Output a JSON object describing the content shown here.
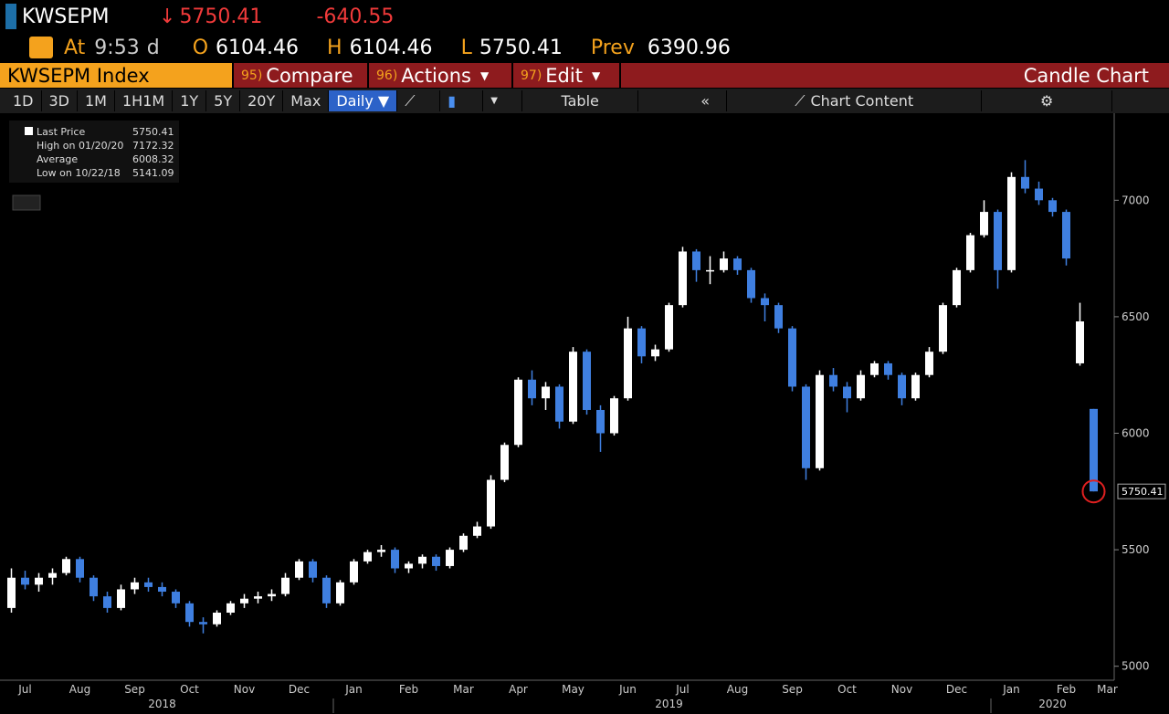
{
  "header": {
    "ticker": "KWSEPM",
    "price": "5750.41",
    "change": "-640.55",
    "at": "At",
    "time": "9:53",
    "flag": "d",
    "o_label": "O",
    "open": "6104.46",
    "h_label": "H",
    "high": "6104.46",
    "l_label": "L",
    "low": "5750.41",
    "prev_label": "Prev",
    "prev": "6390.96"
  },
  "toolbar": {
    "security": "KWSEPM Index",
    "items": [
      {
        "num": "95)",
        "label": "Compare"
      },
      {
        "num": "96)",
        "label": "Actions"
      },
      {
        "num": "97)",
        "label": "Edit"
      }
    ],
    "chart_name": "Candle Chart"
  },
  "range_bar": {
    "ranges": [
      "1D",
      "3D",
      "1M",
      "1H1M",
      "1Y",
      "5Y",
      "20Y",
      "Max"
    ],
    "frequency": "Daily ▼",
    "table": "Table",
    "chart_content": "Chart Content"
  },
  "chart_data": {
    "type": "candlestick",
    "up_color": "#ffffff",
    "down_color": "#3f7fe0",
    "legend": [
      {
        "label": "Last Price",
        "value": "5750.41"
      },
      {
        "label": "High on 01/20/20",
        "value": "7172.32"
      },
      {
        "label": "Average",
        "value": "6008.32"
      },
      {
        "label": "Low on 10/22/18",
        "value": "5141.09"
      }
    ],
    "last_price_label": "5750.41",
    "ylim": [
      4940,
      7350
    ],
    "yticks": [
      5000,
      5500,
      6000,
      6500,
      7000
    ],
    "grid": false,
    "categories": [
      null,
      "Jul",
      null,
      null,
      null,
      "Aug",
      null,
      null,
      null,
      "Sep",
      null,
      null,
      null,
      "Oct",
      null,
      null,
      null,
      "Nov",
      null,
      null,
      null,
      "Dec",
      null,
      null,
      null,
      "Jan",
      null,
      null,
      null,
      "Feb",
      null,
      null,
      null,
      "Mar",
      null,
      null,
      null,
      "Apr",
      null,
      null,
      null,
      "May",
      null,
      null,
      null,
      "Jun",
      null,
      null,
      null,
      "Jul",
      null,
      null,
      null,
      "Aug",
      null,
      null,
      null,
      "Sep",
      null,
      null,
      null,
      "Oct",
      null,
      null,
      null,
      "Nov",
      null,
      null,
      null,
      "Dec",
      null,
      null,
      null,
      "Jan",
      null,
      null,
      null,
      "Feb",
      null,
      null,
      "Mar"
    ],
    "year_categories": [
      null,
      null,
      null,
      null,
      null,
      null,
      null,
      null,
      null,
      null,
      null,
      "2018",
      null,
      null,
      null,
      null,
      null,
      null,
      null,
      null,
      null,
      null,
      null,
      null,
      null,
      null,
      null,
      null,
      null,
      null,
      null,
      null,
      null,
      null,
      null,
      null,
      null,
      null,
      null,
      null,
      null,
      null,
      null,
      null,
      null,
      null,
      null,
      null,
      "2019",
      null,
      null,
      null,
      null,
      null,
      null,
      null,
      null,
      null,
      null,
      null,
      null,
      null,
      null,
      null,
      null,
      null,
      null,
      null,
      null,
      null,
      null,
      null,
      null,
      null,
      null,
      null,
      "2020",
      null,
      null,
      null,
      null
    ],
    "candles": [
      {
        "open": 5250,
        "high": 5420,
        "low": 5230,
        "close": 5380
      },
      {
        "open": 5380,
        "high": 5410,
        "low": 5330,
        "close": 5350
      },
      {
        "open": 5350,
        "high": 5400,
        "low": 5320,
        "close": 5380
      },
      {
        "open": 5380,
        "high": 5420,
        "low": 5350,
        "close": 5400
      },
      {
        "open": 5400,
        "high": 5470,
        "low": 5390,
        "close": 5460
      },
      {
        "open": 5460,
        "high": 5470,
        "low": 5360,
        "close": 5380
      },
      {
        "open": 5380,
        "high": 5390,
        "low": 5280,
        "close": 5300
      },
      {
        "open": 5300,
        "high": 5320,
        "low": 5230,
        "close": 5250
      },
      {
        "open": 5250,
        "high": 5350,
        "low": 5240,
        "close": 5330
      },
      {
        "open": 5330,
        "high": 5380,
        "low": 5310,
        "close": 5360
      },
      {
        "open": 5360,
        "high": 5380,
        "low": 5320,
        "close": 5340
      },
      {
        "open": 5340,
        "high": 5360,
        "low": 5300,
        "close": 5320
      },
      {
        "open": 5320,
        "high": 5330,
        "low": 5250,
        "close": 5270
      },
      {
        "open": 5270,
        "high": 5280,
        "low": 5170,
        "close": 5190
      },
      {
        "open": 5190,
        "high": 5210,
        "low": 5141.09,
        "close": 5180
      },
      {
        "open": 5180,
        "high": 5240,
        "low": 5170,
        "close": 5230
      },
      {
        "open": 5230,
        "high": 5280,
        "low": 5220,
        "close": 5270
      },
      {
        "open": 5270,
        "high": 5310,
        "low": 5250,
        "close": 5290
      },
      {
        "open": 5290,
        "high": 5320,
        "low": 5270,
        "close": 5300
      },
      {
        "open": 5300,
        "high": 5330,
        "low": 5280,
        "close": 5310
      },
      {
        "open": 5310,
        "high": 5400,
        "low": 5300,
        "close": 5380
      },
      {
        "open": 5380,
        "high": 5460,
        "low": 5370,
        "close": 5450
      },
      {
        "open": 5450,
        "high": 5460,
        "low": 5360,
        "close": 5380
      },
      {
        "open": 5380,
        "high": 5390,
        "low": 5250,
        "close": 5270
      },
      {
        "open": 5270,
        "high": 5370,
        "low": 5260,
        "close": 5360
      },
      {
        "open": 5360,
        "high": 5460,
        "low": 5350,
        "close": 5450
      },
      {
        "open": 5450,
        "high": 5500,
        "low": 5440,
        "close": 5490
      },
      {
        "open": 5490,
        "high": 5520,
        "low": 5470,
        "close": 5500
      },
      {
        "open": 5500,
        "high": 5510,
        "low": 5400,
        "close": 5420
      },
      {
        "open": 5420,
        "high": 5450,
        "low": 5400,
        "close": 5440
      },
      {
        "open": 5440,
        "high": 5480,
        "low": 5420,
        "close": 5470
      },
      {
        "open": 5470,
        "high": 5480,
        "low": 5410,
        "close": 5430
      },
      {
        "open": 5430,
        "high": 5510,
        "low": 5420,
        "close": 5500
      },
      {
        "open": 5500,
        "high": 5570,
        "low": 5490,
        "close": 5560
      },
      {
        "open": 5560,
        "high": 5620,
        "low": 5550,
        "close": 5600
      },
      {
        "open": 5600,
        "high": 5820,
        "low": 5590,
        "close": 5800
      },
      {
        "open": 5800,
        "high": 5960,
        "low": 5790,
        "close": 5950
      },
      {
        "open": 5950,
        "high": 6240,
        "low": 5940,
        "close": 6230
      },
      {
        "open": 6230,
        "high": 6270,
        "low": 6120,
        "close": 6150
      },
      {
        "open": 6150,
        "high": 6220,
        "low": 6100,
        "close": 6200
      },
      {
        "open": 6200,
        "high": 6210,
        "low": 6020,
        "close": 6050
      },
      {
        "open": 6050,
        "high": 6370,
        "low": 6040,
        "close": 6350
      },
      {
        "open": 6350,
        "high": 6360,
        "low": 6080,
        "close": 6100
      },
      {
        "open": 6100,
        "high": 6120,
        "low": 5920,
        "close": 6000
      },
      {
        "open": 6000,
        "high": 6160,
        "low": 5990,
        "close": 6150
      },
      {
        "open": 6150,
        "high": 6500,
        "low": 6140,
        "close": 6450
      },
      {
        "open": 6450,
        "high": 6460,
        "low": 6300,
        "close": 6330
      },
      {
        "open": 6330,
        "high": 6380,
        "low": 6310,
        "close": 6360
      },
      {
        "open": 6360,
        "high": 6560,
        "low": 6350,
        "close": 6550
      },
      {
        "open": 6550,
        "high": 6800,
        "low": 6540,
        "close": 6780
      },
      {
        "open": 6780,
        "high": 6790,
        "low": 6650,
        "close": 6700
      },
      {
        "open": 6700,
        "high": 6760,
        "low": 6640,
        "close": 6700
      },
      {
        "open": 6700,
        "high": 6780,
        "low": 6690,
        "close": 6750
      },
      {
        "open": 6750,
        "high": 6760,
        "low": 6680,
        "close": 6700
      },
      {
        "open": 6700,
        "high": 6710,
        "low": 6560,
        "close": 6580
      },
      {
        "open": 6580,
        "high": 6600,
        "low": 6480,
        "close": 6550
      },
      {
        "open": 6550,
        "high": 6560,
        "low": 6430,
        "close": 6450
      },
      {
        "open": 6450,
        "high": 6460,
        "low": 6180,
        "close": 6200
      },
      {
        "open": 6200,
        "high": 6210,
        "low": 5800,
        "close": 5850
      },
      {
        "open": 5850,
        "high": 6270,
        "low": 5840,
        "close": 6250
      },
      {
        "open": 6250,
        "high": 6280,
        "low": 6180,
        "close": 6200
      },
      {
        "open": 6200,
        "high": 6220,
        "low": 6090,
        "close": 6150
      },
      {
        "open": 6150,
        "high": 6270,
        "low": 6140,
        "close": 6250
      },
      {
        "open": 6250,
        "high": 6310,
        "low": 6240,
        "close": 6300
      },
      {
        "open": 6300,
        "high": 6310,
        "low": 6230,
        "close": 6250
      },
      {
        "open": 6250,
        "high": 6260,
        "low": 6120,
        "close": 6150
      },
      {
        "open": 6150,
        "high": 6260,
        "low": 6140,
        "close": 6250
      },
      {
        "open": 6250,
        "high": 6370,
        "low": 6240,
        "close": 6350
      },
      {
        "open": 6350,
        "high": 6560,
        "low": 6340,
        "close": 6550
      },
      {
        "open": 6550,
        "high": 6710,
        "low": 6540,
        "close": 6700
      },
      {
        "open": 6700,
        "high": 6860,
        "low": 6690,
        "close": 6850
      },
      {
        "open": 6850,
        "high": 7000,
        "low": 6840,
        "close": 6950
      },
      {
        "open": 6950,
        "high": 6960,
        "low": 6620,
        "close": 6700
      },
      {
        "open": 6700,
        "high": 7120,
        "low": 6690,
        "close": 7100
      },
      {
        "open": 7100,
        "high": 7172.32,
        "low": 7030,
        "close": 7050
      },
      {
        "open": 7050,
        "high": 7080,
        "low": 6980,
        "close": 7000
      },
      {
        "open": 7000,
        "high": 7010,
        "low": 6930,
        "close": 6950
      },
      {
        "open": 6950,
        "high": 6960,
        "low": 6720,
        "close": 6750
      },
      {
        "open": 6300,
        "high": 6560,
        "low": 6290,
        "close": 6480
      },
      {
        "open": 6104.46,
        "high": 6104.46,
        "low": 5750.41,
        "close": 5750.41
      },
      null
    ]
  }
}
